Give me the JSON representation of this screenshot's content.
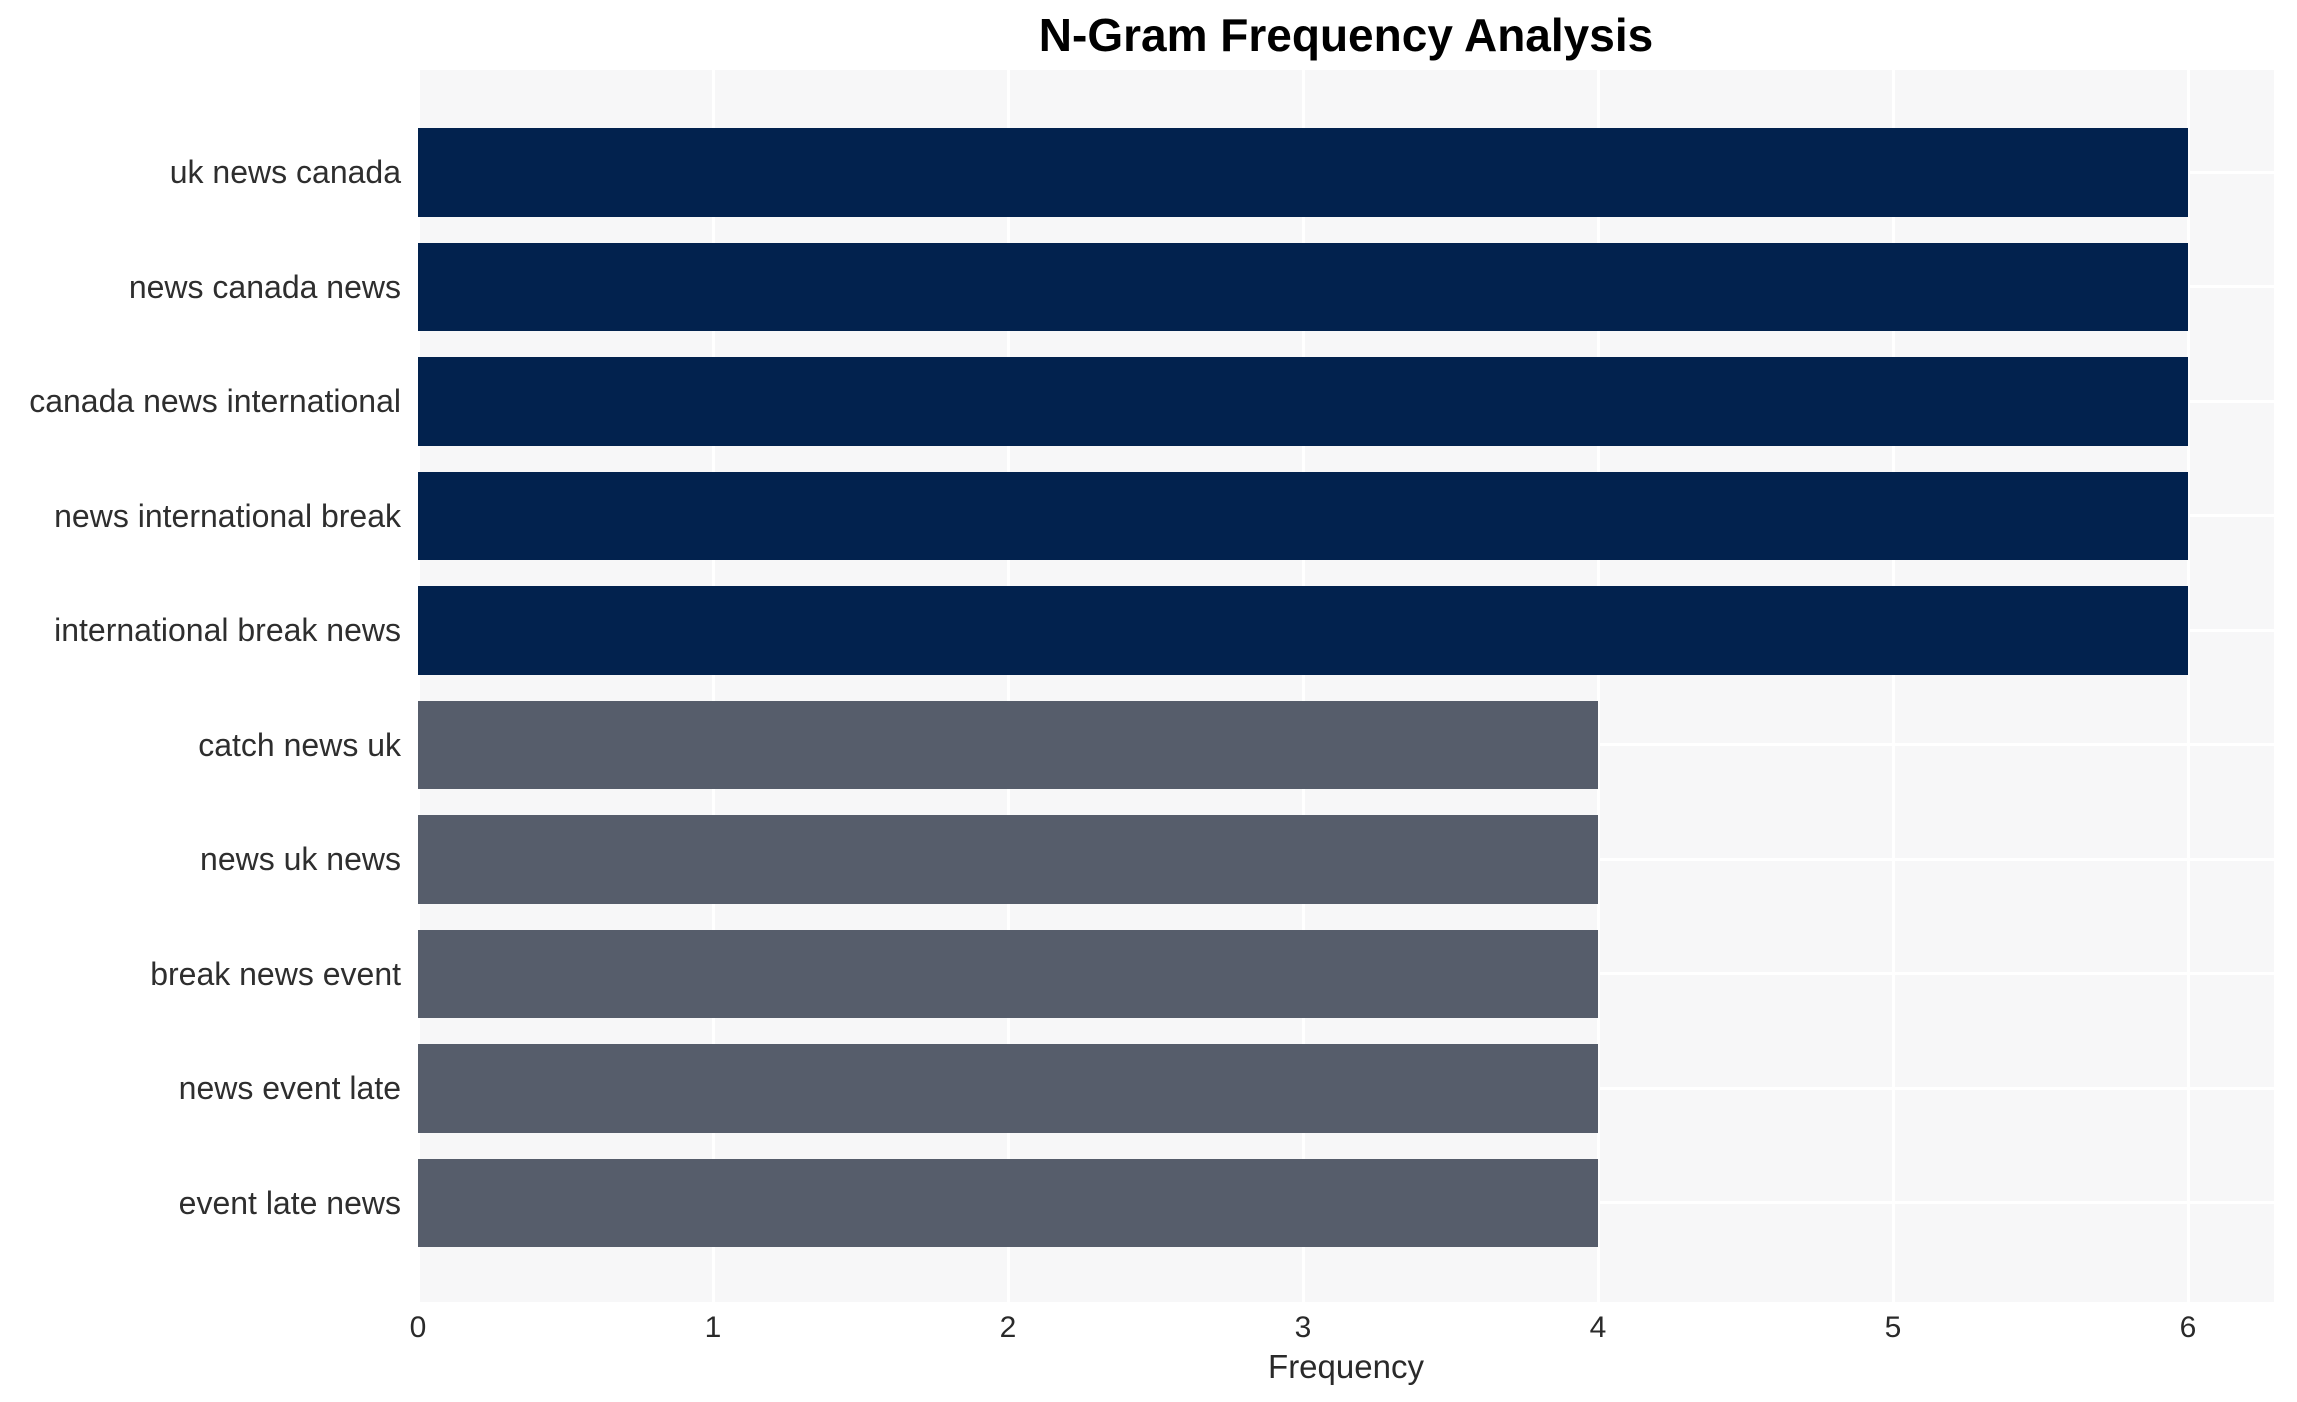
{
  "chart_data": {
    "type": "bar",
    "orientation": "horizontal",
    "title": "N-Gram Frequency Analysis",
    "xlabel": "Frequency",
    "ylabel": "",
    "grid": true,
    "legend": false,
    "xlim": [
      0,
      6.29
    ],
    "x_ticks": [
      0,
      1,
      2,
      3,
      4,
      5,
      6
    ],
    "categories": [
      "uk news canada",
      "news canada news",
      "canada news international",
      "news international break",
      "international break news",
      "catch news uk",
      "news uk news",
      "break news event",
      "news event late",
      "event late news"
    ],
    "values": [
      6,
      6,
      6,
      6,
      6,
      4,
      4,
      4,
      4,
      4
    ],
    "bar_colors": [
      "#02224e",
      "#02224e",
      "#02224e",
      "#02224e",
      "#02224e",
      "#565d6b",
      "#565d6b",
      "#565d6b",
      "#565d6b",
      "#565d6b"
    ],
    "colors": {
      "high_frequency_bar": "#02224e",
      "low_frequency_bar": "#565d6b",
      "plot_background": "#f7f7f8",
      "grid_line": "#ffffff",
      "title_text": "#000000",
      "axis_text": "#2a2a2a",
      "category_text": "#2e2e2e",
      "page_background": "#ffffff"
    }
  }
}
